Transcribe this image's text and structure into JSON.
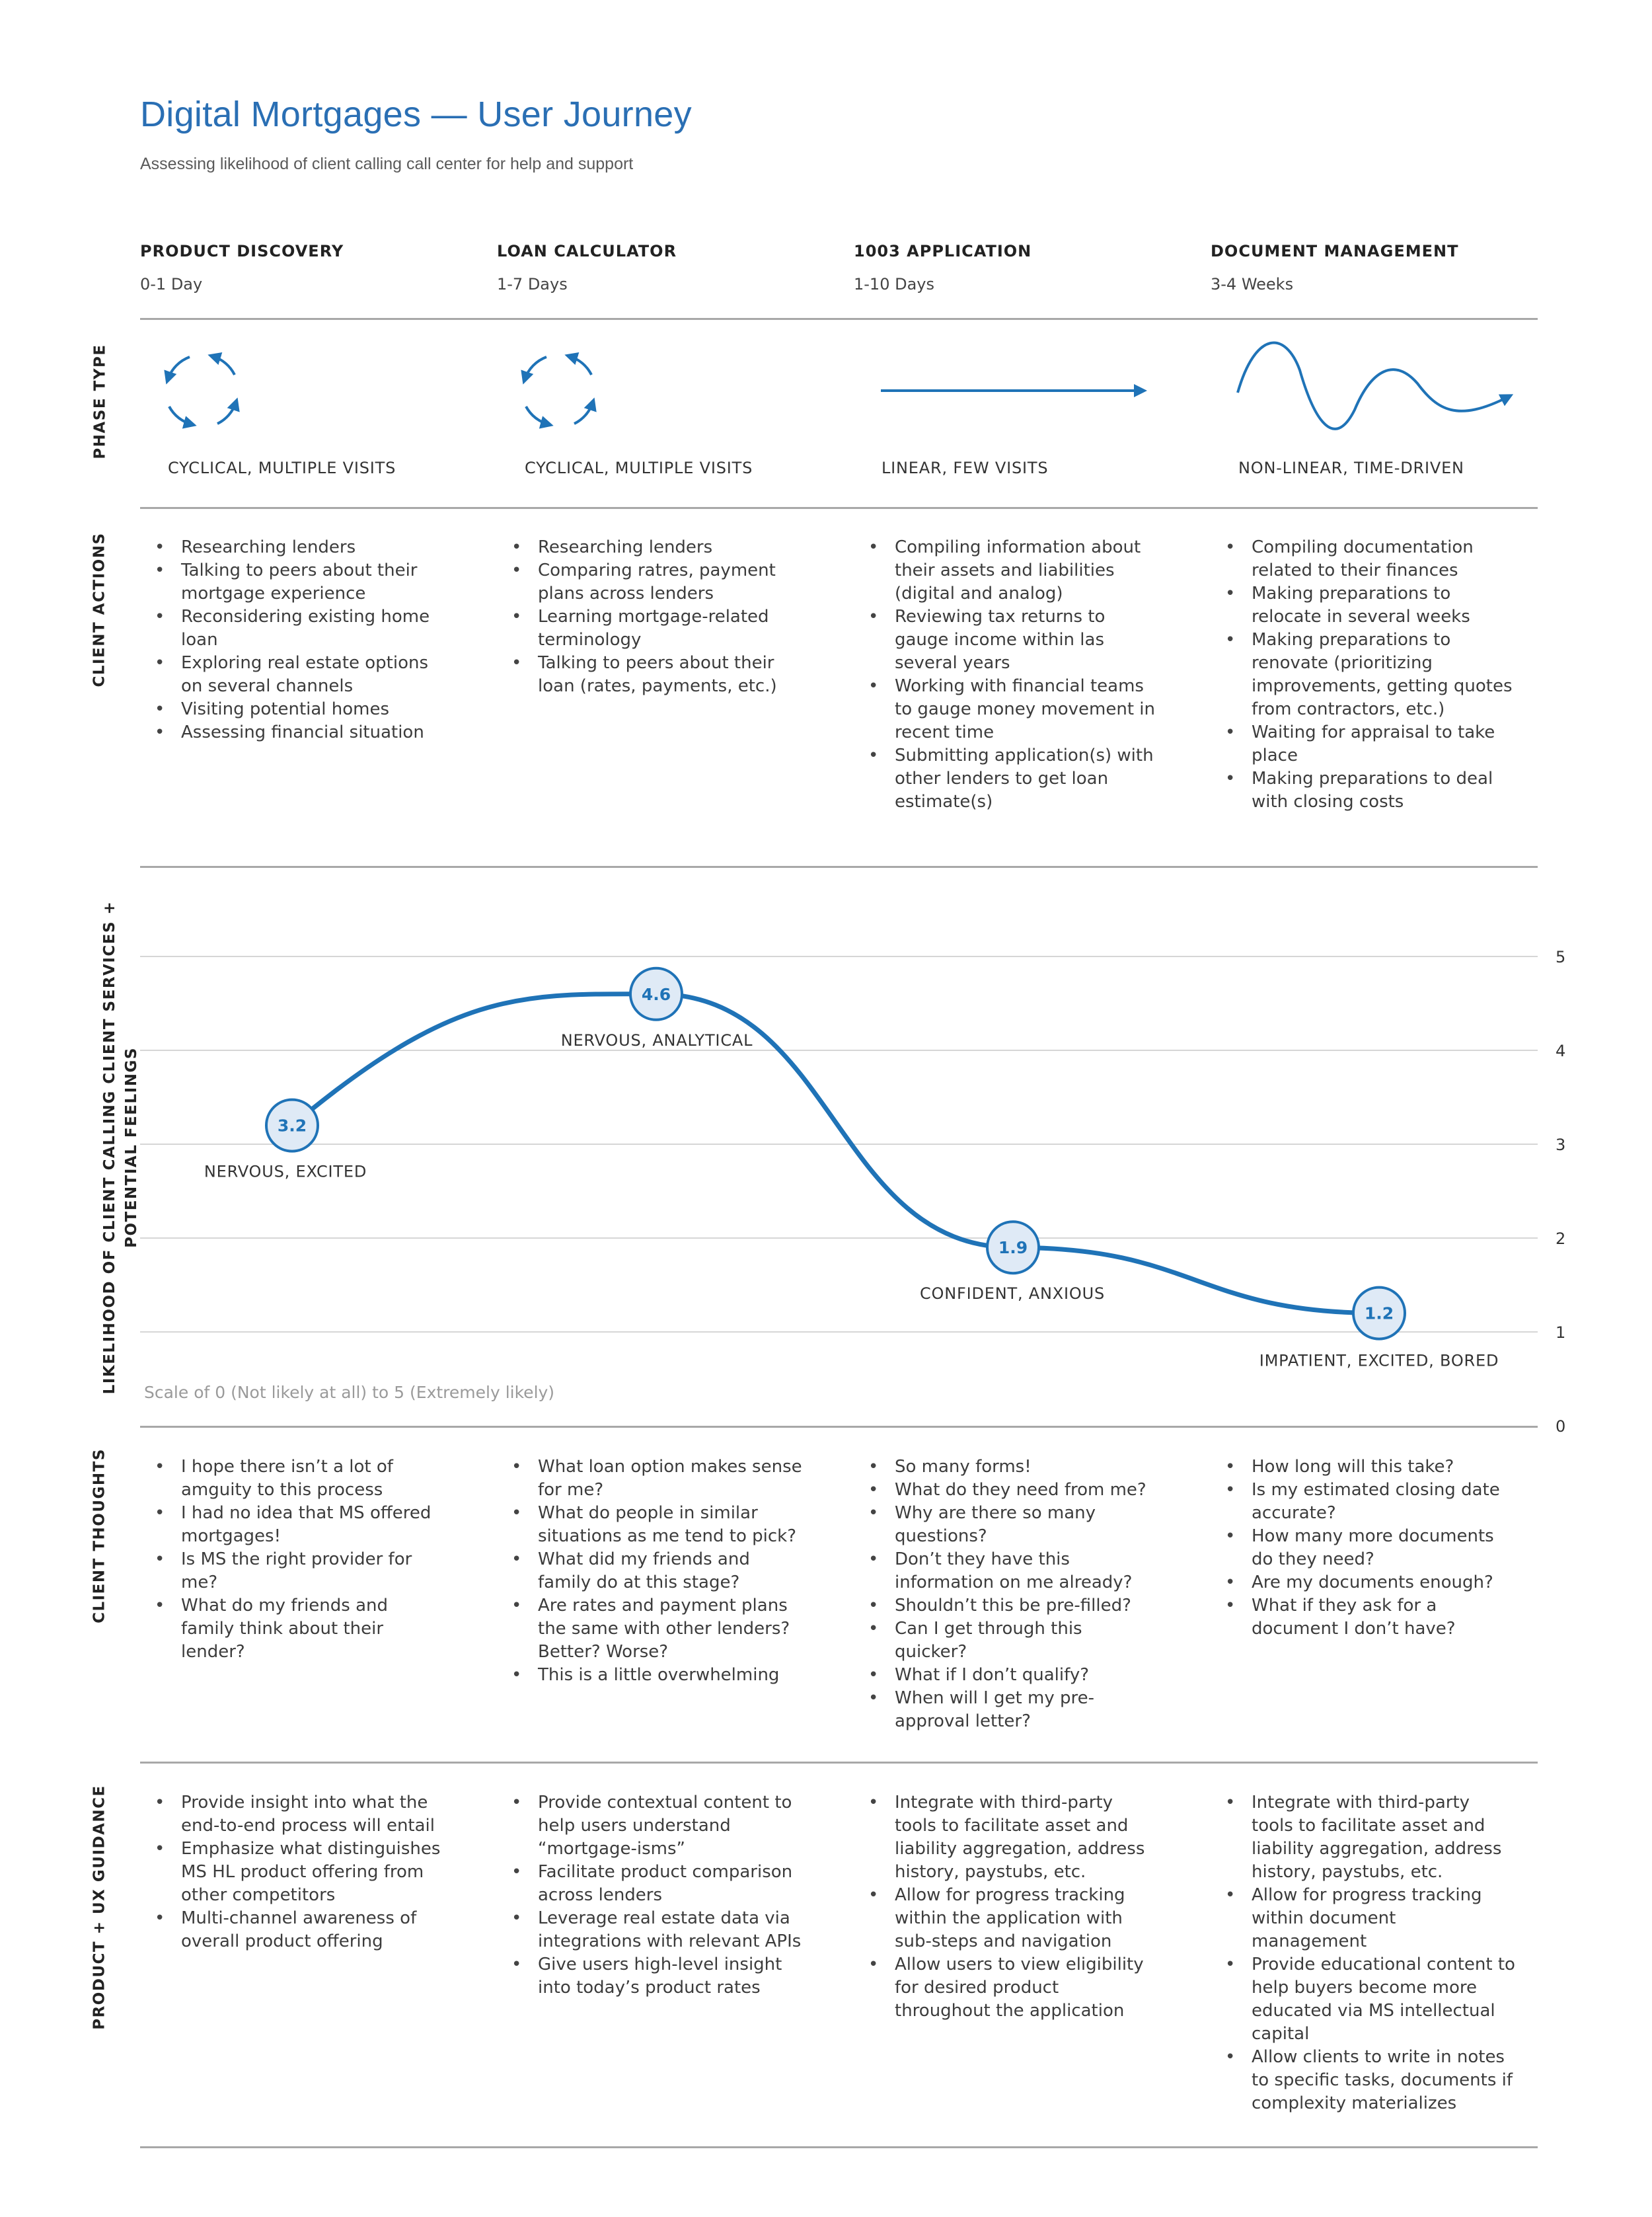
{
  "title": "Digital Mortgages — User Journey",
  "subtitle": "Assessing likelihood of client calling call center for help and support",
  "phases": [
    {
      "name": "PRODUCT DISCOVERY",
      "duration": "0-1 Day"
    },
    {
      "name": "LOAN CALCULATOR",
      "duration": "1-7 Days"
    },
    {
      "name": "1003 APPLICATION",
      "duration": "1-10 Days"
    },
    {
      "name": "DOCUMENT MANAGEMENT",
      "duration": "3-4 Weeks"
    }
  ],
  "row_labels": {
    "phase_type": "PHASE TYPE",
    "client_actions": "CLIENT ACTIONS",
    "likelihood_line1": "LIKELIHOOD OF CLIENT CALLING CLIENT SERVICES +",
    "likelihood_line2": "POTENTIAL FEELINGS",
    "client_thoughts": "CLIENT THOUGHTS",
    "guidance": "PRODUCT + UX GUIDANCE"
  },
  "phase_types": [
    {
      "label": "CYCLICAL, MULTIPLE VISITS",
      "icon": "cycle-icon"
    },
    {
      "label": "CYCLICAL, MULTIPLE VISITS",
      "icon": "cycle-icon"
    },
    {
      "label": "LINEAR, FEW VISITS",
      "icon": "arrow-right-icon"
    },
    {
      "label": "NON-LINEAR, TIME-DRIVEN",
      "icon": "wave-icon"
    }
  ],
  "client_actions": [
    [
      "Researching lenders",
      "Talking to peers about their mortgage experience",
      "Reconsidering existing home loan",
      "Exploring real estate options on several channels",
      "Visiting potential homes",
      "Assessing financial situation"
    ],
    [
      "Researching lenders",
      "Comparing ratres, payment plans across lenders",
      "Learning mortgage-related terminology",
      "Talking to peers about their loan (rates, payments, etc.)"
    ],
    [
      "Compiling information about their assets and liabilities (digital and analog)",
      "Reviewing tax returns to gauge income within las several years",
      "Working with financial teams to gauge money movement in recent time",
      "Submitting application(s) with other lenders to get loan estimate(s)"
    ],
    [
      "Compiling documentation related to their finances",
      "Making preparations to relocate in several weeks",
      "Making preparations to renovate (prioritizing improvements, getting quotes from contractors, etc.)",
      "Waiting for appraisal to take place",
      "Making preparations to deal with closing costs"
    ]
  ],
  "chart_data": {
    "type": "line",
    "categories": [
      "PRODUCT DISCOVERY",
      "LOAN CALCULATOR",
      "1003 APPLICATION",
      "DOCUMENT MANAGEMENT"
    ],
    "values": [
      3.2,
      4.6,
      1.9,
      1.2
    ],
    "point_labels": [
      "3.2",
      "4.6",
      "1.9",
      "1.2"
    ],
    "feelings": [
      "NERVOUS, EXCITED",
      "NERVOUS, ANALYTICAL",
      "CONFIDENT, ANXIOUS",
      "IMPATIENT, EXCITED, BORED"
    ],
    "ylim": [
      0,
      5
    ],
    "yticks": [
      "0",
      "1",
      "2",
      "3",
      "4",
      "5"
    ],
    "grid": true,
    "note": "Scale of 0 (Not likely at all) to 5 (Extremely likely)",
    "line_color": "#1f73b7",
    "marker_fill": "#dfeaf6"
  },
  "client_thoughts": [
    [
      "I hope there isn’t a lot of amguity to this process",
      "I had no idea that MS offered mortgages!",
      "Is MS the right provider for me?",
      "What do my friends and family think about their lender?"
    ],
    [
      "What loan option makes sense for me?",
      "What do people in similar situations as me tend to pick?",
      "What did my friends and family do at this stage?",
      "Are rates and payment plans the same with other lenders? Better? Worse?",
      "This is a little overwhelming"
    ],
    [
      "So many forms!",
      "What do they need from me?",
      "Why are there so many questions?",
      "Don’t they have this information on me already?",
      "Shouldn’t this be pre-filled?",
      "Can I get through this quicker?",
      "What if I don’t qualify?",
      "When will I get my pre-approval letter?"
    ],
    [
      "How long will this take?",
      "Is my estimated closing date accurate?",
      "How many more documents do they need?",
      "Are my documents enough?",
      "What if they ask for a document I don’t have?"
    ]
  ],
  "guidance": [
    [
      "Provide insight into what the end-to-end process will entail",
      "Emphasize what distinguishes MS HL product offering from other competitors",
      "Multi-channel awareness of overall product offering"
    ],
    [
      "Provide contextual content to help users understand “mortgage-isms”",
      "Facilitate product comparison across lenders",
      "Leverage real estate data via integrations with relevant APIs",
      "Give users high-level insight into today’s product rates"
    ],
    [
      "Integrate with third-party tools to facilitate asset and liability aggregation, address history, paystubs, etc.",
      "Allow for progress tracking within the application with sub-steps and navigation",
      "Allow users to view eligibility for desired product throughout the application"
    ],
    [
      "Integrate with third-party tools to facilitate asset and liability aggregation, address history, paystubs, etc.",
      "Allow for progress tracking within document management",
      "Provide educational content to help buyers become more educated via MS intellectual capital",
      "Allow clients to write in notes to specific tasks, documents if complexity materializes"
    ]
  ],
  "colors": {
    "accent": "#2a6fb4",
    "line": "#1f73b7",
    "divider": "#a8a8a8",
    "grid": "#d6d6d6"
  }
}
